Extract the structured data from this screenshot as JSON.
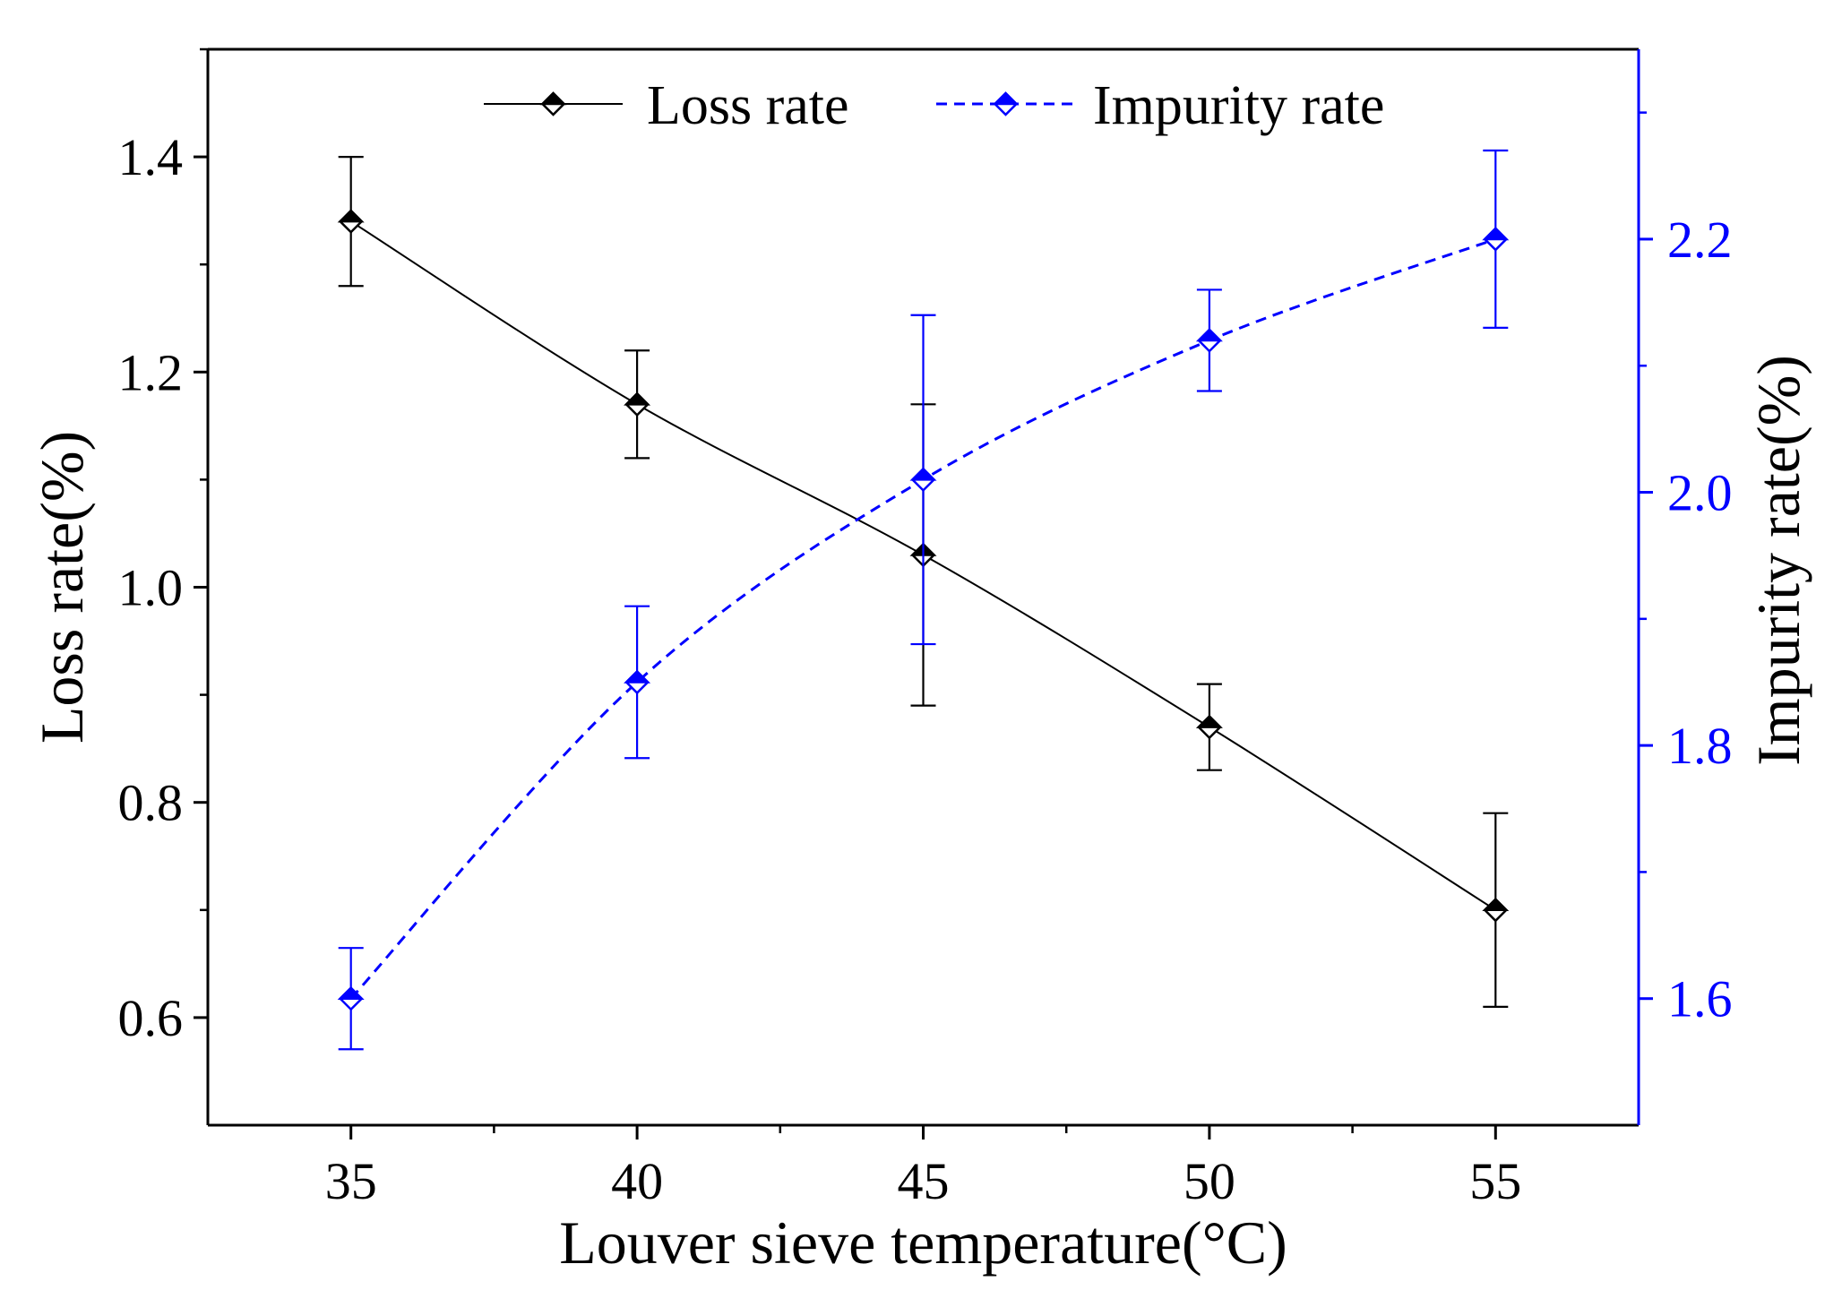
{
  "chart_data": {
    "type": "line",
    "xlabel": "Louver sieve temperature(°C)",
    "ylabel_left": "Loss rate(%)",
    "ylabel_right": "Impurity rate(%)",
    "x": [
      35,
      40,
      45,
      50,
      55
    ],
    "xlim": [
      32.5,
      57.5
    ],
    "x_ticks": [
      35,
      40,
      45,
      50,
      55
    ],
    "x_tick_labels": [
      "35",
      "40",
      "45",
      "50",
      "55"
    ],
    "ylim_left": [
      0.5,
      1.5
    ],
    "y_ticks_left": [
      0.6,
      0.8,
      1.0,
      1.2,
      1.4
    ],
    "y_tick_labels_left": [
      "0.6",
      "0.8",
      "1.0",
      "1.2",
      "1.4"
    ],
    "ylim_right": [
      1.5,
      2.35
    ],
    "y_ticks_right": [
      1.6,
      1.8,
      2.0,
      2.2
    ],
    "y_tick_labels_right": [
      "1.6",
      "1.8",
      "2.0",
      "2.2"
    ],
    "legend_position": "top-center",
    "grid": false,
    "series": [
      {
        "name": "Loss rate",
        "axis": "left",
        "color": "#000000",
        "line_style": "solid",
        "marker": "half-filled diamond",
        "values": [
          1.34,
          1.17,
          1.03,
          0.87,
          0.7
        ],
        "error_low": [
          1.28,
          1.12,
          0.89,
          0.83,
          0.61
        ],
        "error_high": [
          1.4,
          1.22,
          1.17,
          0.91,
          0.79
        ]
      },
      {
        "name": "Impurity rate",
        "axis": "right",
        "color": "#0000ff",
        "line_style": "dashed",
        "marker": "half-filled diamond",
        "values": [
          1.6,
          1.85,
          2.01,
          2.12,
          2.2
        ],
        "error_low": [
          1.56,
          1.79,
          1.88,
          2.08,
          2.13
        ],
        "error_high": [
          1.64,
          1.91,
          2.14,
          2.16,
          2.27
        ]
      }
    ]
  }
}
